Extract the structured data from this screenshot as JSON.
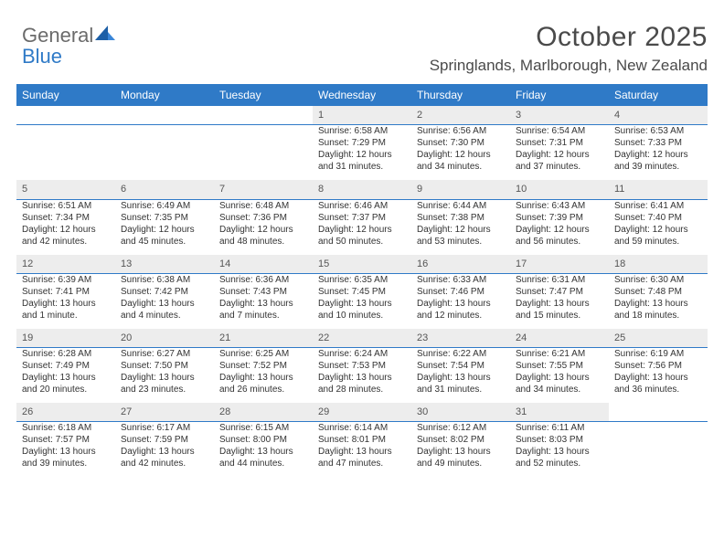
{
  "logo": {
    "word1": "General",
    "word2": "Blue"
  },
  "title": "October 2025",
  "subtitle": "Springlands, Marlborough, New Zealand",
  "colors": {
    "header_bg": "#2f7ac7",
    "header_text": "#ffffff",
    "daynum_bg": "#ededed",
    "row_border": "#2f7ac7",
    "body_text": "#333333",
    "title_text": "#4a4a4a",
    "logo_grey": "#6b6b6b",
    "logo_blue": "#2f7ac7",
    "page_bg": "#ffffff"
  },
  "day_headers": [
    "Sunday",
    "Monday",
    "Tuesday",
    "Wednesday",
    "Thursday",
    "Friday",
    "Saturday"
  ],
  "weeks": [
    [
      null,
      null,
      null,
      {
        "n": "1",
        "sr": "6:58 AM",
        "ss": "7:29 PM",
        "dl": "12 hours and 31 minutes."
      },
      {
        "n": "2",
        "sr": "6:56 AM",
        "ss": "7:30 PM",
        "dl": "12 hours and 34 minutes."
      },
      {
        "n": "3",
        "sr": "6:54 AM",
        "ss": "7:31 PM",
        "dl": "12 hours and 37 minutes."
      },
      {
        "n": "4",
        "sr": "6:53 AM",
        "ss": "7:33 PM",
        "dl": "12 hours and 39 minutes."
      }
    ],
    [
      {
        "n": "5",
        "sr": "6:51 AM",
        "ss": "7:34 PM",
        "dl": "12 hours and 42 minutes."
      },
      {
        "n": "6",
        "sr": "6:49 AM",
        "ss": "7:35 PM",
        "dl": "12 hours and 45 minutes."
      },
      {
        "n": "7",
        "sr": "6:48 AM",
        "ss": "7:36 PM",
        "dl": "12 hours and 48 minutes."
      },
      {
        "n": "8",
        "sr": "6:46 AM",
        "ss": "7:37 PM",
        "dl": "12 hours and 50 minutes."
      },
      {
        "n": "9",
        "sr": "6:44 AM",
        "ss": "7:38 PM",
        "dl": "12 hours and 53 minutes."
      },
      {
        "n": "10",
        "sr": "6:43 AM",
        "ss": "7:39 PM",
        "dl": "12 hours and 56 minutes."
      },
      {
        "n": "11",
        "sr": "6:41 AM",
        "ss": "7:40 PM",
        "dl": "12 hours and 59 minutes."
      }
    ],
    [
      {
        "n": "12",
        "sr": "6:39 AM",
        "ss": "7:41 PM",
        "dl": "13 hours and 1 minute."
      },
      {
        "n": "13",
        "sr": "6:38 AM",
        "ss": "7:42 PM",
        "dl": "13 hours and 4 minutes."
      },
      {
        "n": "14",
        "sr": "6:36 AM",
        "ss": "7:43 PM",
        "dl": "13 hours and 7 minutes."
      },
      {
        "n": "15",
        "sr": "6:35 AM",
        "ss": "7:45 PM",
        "dl": "13 hours and 10 minutes."
      },
      {
        "n": "16",
        "sr": "6:33 AM",
        "ss": "7:46 PM",
        "dl": "13 hours and 12 minutes."
      },
      {
        "n": "17",
        "sr": "6:31 AM",
        "ss": "7:47 PM",
        "dl": "13 hours and 15 minutes."
      },
      {
        "n": "18",
        "sr": "6:30 AM",
        "ss": "7:48 PM",
        "dl": "13 hours and 18 minutes."
      }
    ],
    [
      {
        "n": "19",
        "sr": "6:28 AM",
        "ss": "7:49 PM",
        "dl": "13 hours and 20 minutes."
      },
      {
        "n": "20",
        "sr": "6:27 AM",
        "ss": "7:50 PM",
        "dl": "13 hours and 23 minutes."
      },
      {
        "n": "21",
        "sr": "6:25 AM",
        "ss": "7:52 PM",
        "dl": "13 hours and 26 minutes."
      },
      {
        "n": "22",
        "sr": "6:24 AM",
        "ss": "7:53 PM",
        "dl": "13 hours and 28 minutes."
      },
      {
        "n": "23",
        "sr": "6:22 AM",
        "ss": "7:54 PM",
        "dl": "13 hours and 31 minutes."
      },
      {
        "n": "24",
        "sr": "6:21 AM",
        "ss": "7:55 PM",
        "dl": "13 hours and 34 minutes."
      },
      {
        "n": "25",
        "sr": "6:19 AM",
        "ss": "7:56 PM",
        "dl": "13 hours and 36 minutes."
      }
    ],
    [
      {
        "n": "26",
        "sr": "6:18 AM",
        "ss": "7:57 PM",
        "dl": "13 hours and 39 minutes."
      },
      {
        "n": "27",
        "sr": "6:17 AM",
        "ss": "7:59 PM",
        "dl": "13 hours and 42 minutes."
      },
      {
        "n": "28",
        "sr": "6:15 AM",
        "ss": "8:00 PM",
        "dl": "13 hours and 44 minutes."
      },
      {
        "n": "29",
        "sr": "6:14 AM",
        "ss": "8:01 PM",
        "dl": "13 hours and 47 minutes."
      },
      {
        "n": "30",
        "sr": "6:12 AM",
        "ss": "8:02 PM",
        "dl": "13 hours and 49 minutes."
      },
      {
        "n": "31",
        "sr": "6:11 AM",
        "ss": "8:03 PM",
        "dl": "13 hours and 52 minutes."
      },
      null
    ]
  ],
  "labels": {
    "sunrise": "Sunrise:",
    "sunset": "Sunset:",
    "daylight": "Daylight:"
  }
}
